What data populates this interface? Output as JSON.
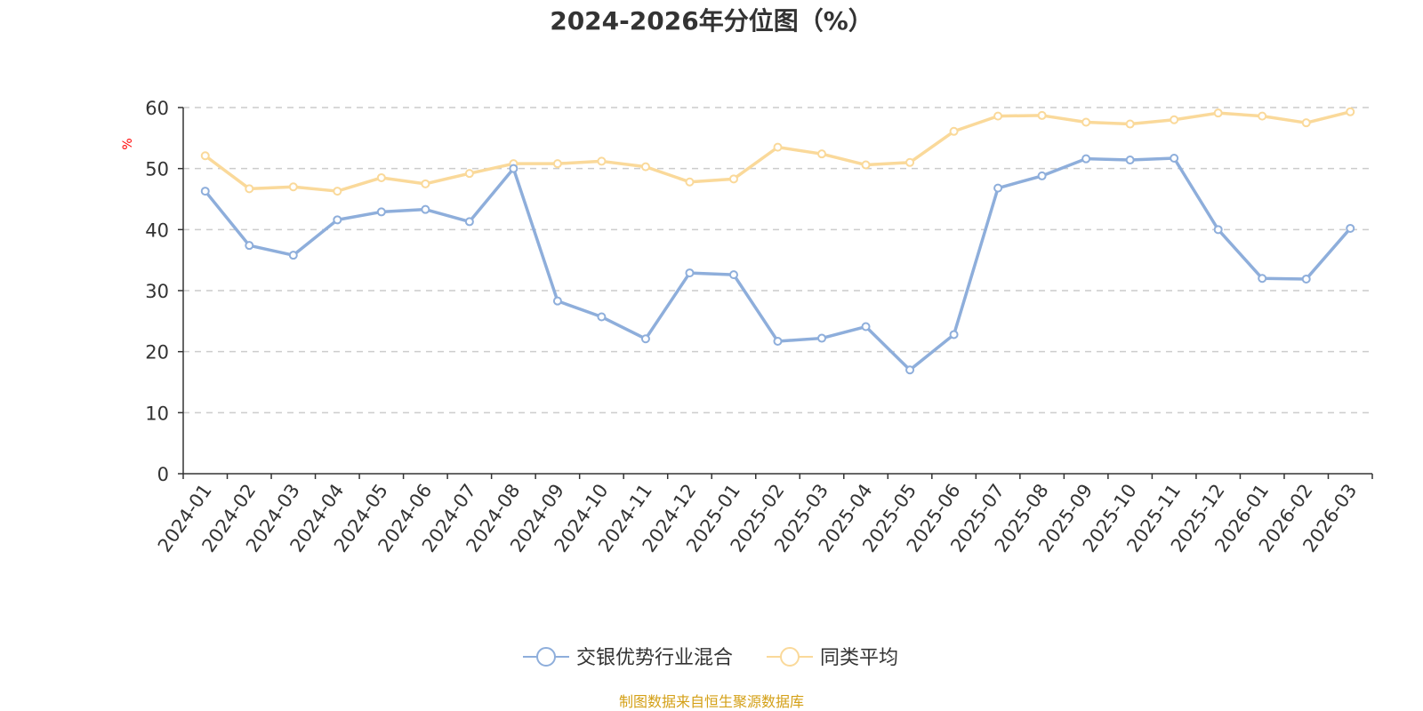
{
  "chart_data": {
    "type": "line",
    "title": "2024-2026年分位图（%）",
    "ylabel": "%",
    "ylim": [
      0,
      60
    ],
    "yticks": [
      0,
      10,
      20,
      30,
      40,
      50,
      60
    ],
    "grid": true,
    "legend_position": "bottom",
    "categories": [
      "2024-01",
      "2024-02",
      "2024-03",
      "2024-04",
      "2024-05",
      "2024-06",
      "2024-07",
      "2024-08",
      "2024-09",
      "2024-10",
      "2024-11",
      "2024-12",
      "2025-01",
      "2025-02",
      "2025-03",
      "2025-04",
      "2025-05",
      "2025-06",
      "2025-07",
      "2025-08",
      "2025-09",
      "2025-10",
      "2025-11",
      "2025-12",
      "2026-01",
      "2026-02",
      "2026-03"
    ],
    "series": [
      {
        "name": "交银优势行业混合",
        "color": "#8eaedb",
        "values": [
          46.3,
          37.4,
          35.8,
          41.6,
          42.9,
          43.3,
          41.3,
          50.0,
          28.3,
          25.7,
          22.1,
          32.9,
          32.6,
          21.7,
          22.2,
          24.1,
          17.0,
          22.8,
          46.8,
          48.8,
          51.6,
          51.4,
          51.7,
          40.0,
          32.0,
          31.9,
          40.2
        ]
      },
      {
        "name": "同类平均",
        "color": "#fad99a",
        "values": [
          52.1,
          46.7,
          47.0,
          46.3,
          48.5,
          47.5,
          49.2,
          50.8,
          50.8,
          51.2,
          50.3,
          47.8,
          48.3,
          53.5,
          52.4,
          50.6,
          51.0,
          56.1,
          58.6,
          58.7,
          57.6,
          57.3,
          58.0,
          59.1,
          58.6,
          57.5,
          59.3
        ]
      }
    ]
  },
  "colors": {
    "axis": "#333333",
    "grid": "#cccccc",
    "ylabel": "#ff0000",
    "source": "#d4a017"
  },
  "source_text": "制图数据来自恒生聚源数据库"
}
